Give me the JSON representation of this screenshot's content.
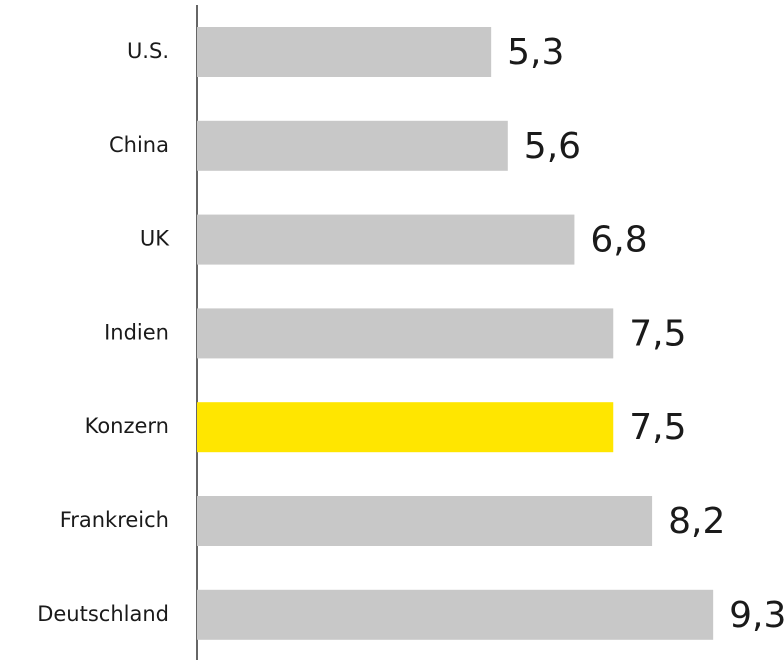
{
  "chart_data": {
    "type": "bar",
    "orientation": "horizontal",
    "categories": [
      "U.S.",
      "China",
      "UK",
      "Indien",
      "Konzern",
      "Frankreich",
      "Deutschland"
    ],
    "values": [
      5.3,
      5.6,
      6.8,
      7.5,
      7.5,
      8.2,
      9.3
    ],
    "value_labels": [
      "5,3",
      "5,6",
      "6,8",
      "7,5",
      "7,5",
      "8,2",
      "9,3"
    ],
    "colors": [
      "#c8c8c8",
      "#c8c8c8",
      "#c8c8c8",
      "#c8c8c8",
      "#ffe600",
      "#c8c8c8",
      "#c8c8c8"
    ]
  }
}
